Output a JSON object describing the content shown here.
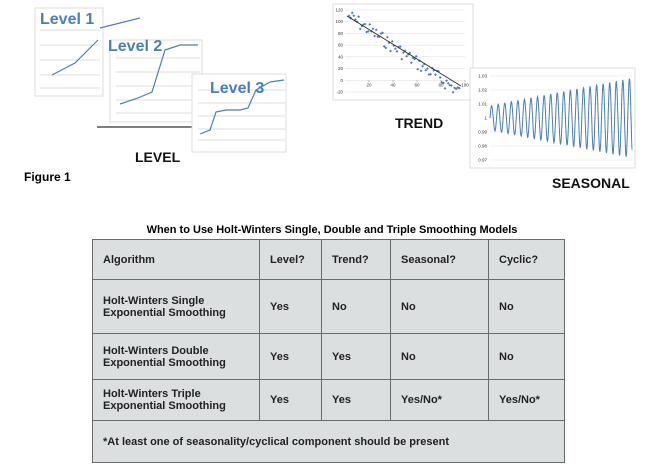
{
  "figure": {
    "label": "Figure 1",
    "level": {
      "titles": [
        "Level 1",
        "Level 2",
        "Level 3"
      ],
      "caption": "LEVEL"
    },
    "trend": {
      "caption": "TREND",
      "yticks": [
        120,
        100,
        80,
        60,
        40,
        20,
        0,
        -20
      ],
      "xticks": [
        20,
        40,
        60,
        80,
        100
      ]
    },
    "seasonal": {
      "caption": "SEASONAL",
      "yticks": [
        1.03,
        1.02,
        1.01,
        1,
        0.99,
        0.98,
        0.97
      ]
    }
  },
  "table": {
    "title": "When to Use Holt-Winters Single, Double and Triple Smoothing Models",
    "header": [
      "Algorithm",
      "Level?",
      "Trend?",
      "Seasonal?",
      "Cyclic?"
    ],
    "rows": [
      [
        "Holt-Winters Single Exponential Smoothing",
        "Yes",
        "No",
        "No",
        "No"
      ],
      [
        "Holt-Winters Double Exponential Smoothing",
        "Yes",
        "Yes",
        "No",
        "No"
      ],
      [
        "Holt-Winters Triple Exponential Smoothing",
        "Yes",
        "Yes",
        "Yes/No*",
        "Yes/No*"
      ]
    ],
    "footnote": "*At least one of seasonality/cyclical  component should be present"
  }
}
